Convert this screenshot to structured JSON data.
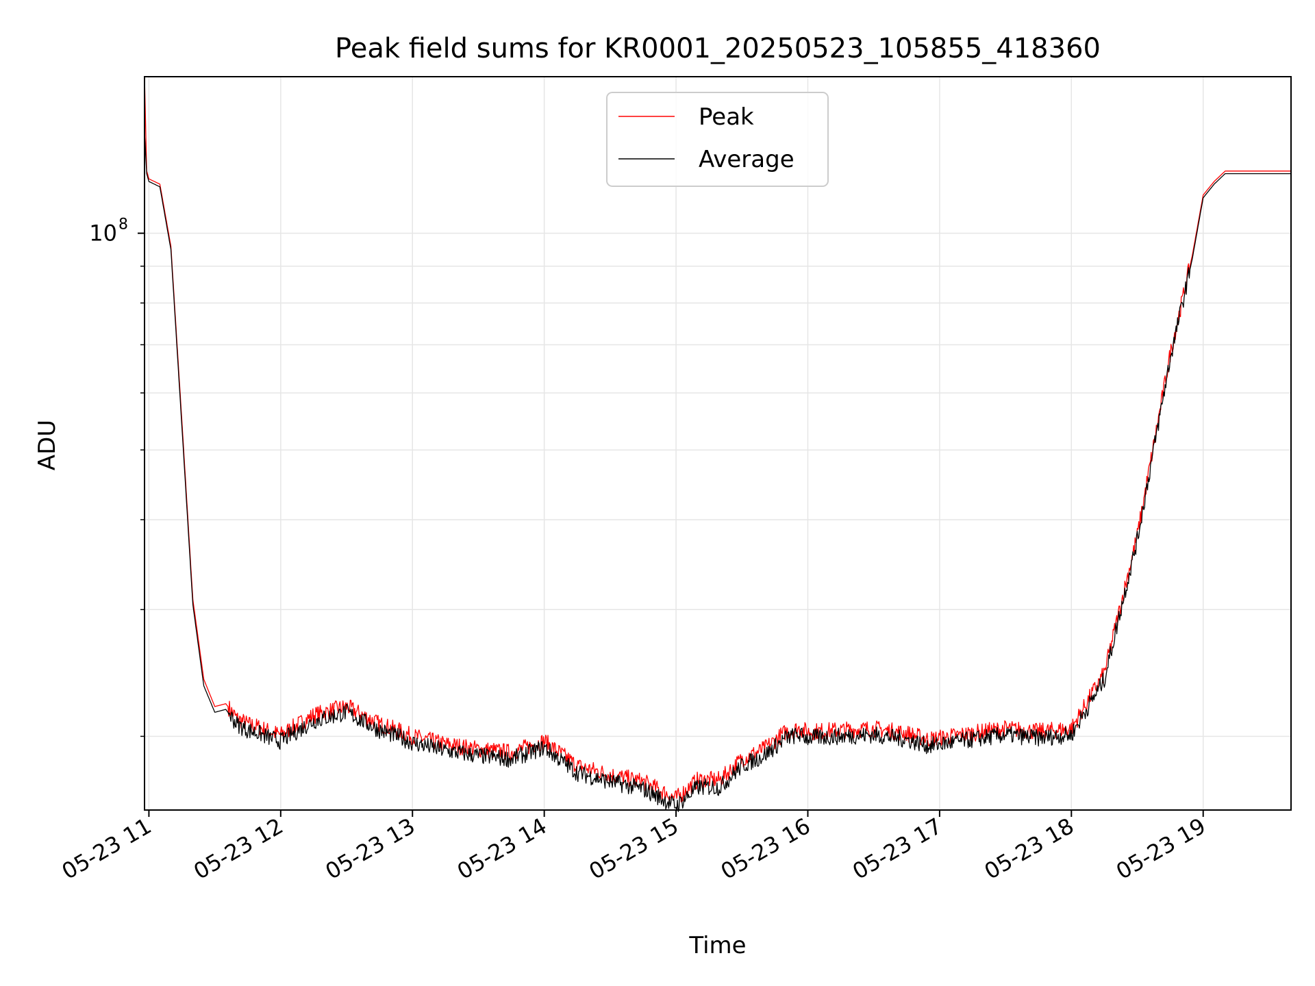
{
  "chart_data": {
    "type": "line",
    "title": "Peak field sums for KR0001_20250523_105855_418360",
    "xlabel": "Time",
    "ylabel": "ADU",
    "yscale": "log",
    "grid": true,
    "legend_position": "top-center",
    "x_ticks": [
      "05-23 11",
      "05-23 12",
      "05-23 13",
      "05-23 14",
      "05-23 15",
      "05-23 16",
      "05-23 17",
      "05-23 18",
      "05-23 19"
    ],
    "y_tick_major": {
      "value": 100000000,
      "label_base": "10",
      "label_exp": "8"
    },
    "y_minor_ticks": [
      20000000,
      30000000,
      40000000,
      50000000,
      60000000,
      70000000,
      80000000,
      90000000
    ],
    "xlim": [
      "2025-05-23T10:58",
      "2025-05-23T19:40"
    ],
    "ylim": [
      15800000,
      165000000
    ],
    "series": [
      {
        "name": "Peak",
        "color": "#ff0000",
        "x": [
          "2025-05-23T10:58",
          "2025-05-23T10:59",
          "2025-05-23T11:00",
          "2025-05-23T11:05",
          "2025-05-23T11:10",
          "2025-05-23T11:15",
          "2025-05-23T11:20",
          "2025-05-23T11:25",
          "2025-05-23T11:30",
          "2025-05-23T11:35",
          "2025-05-23T11:40",
          "2025-05-23T11:45",
          "2025-05-23T11:50",
          "2025-05-23T11:55",
          "2025-05-23T12:00",
          "2025-05-23T12:15",
          "2025-05-23T12:30",
          "2025-05-23T12:45",
          "2025-05-23T12:55",
          "2025-05-23T13:00",
          "2025-05-23T13:15",
          "2025-05-23T13:30",
          "2025-05-23T13:45",
          "2025-05-23T14:00",
          "2025-05-23T14:15",
          "2025-05-23T14:30",
          "2025-05-23T14:45",
          "2025-05-23T15:00",
          "2025-05-23T15:10",
          "2025-05-23T15:20",
          "2025-05-23T15:30",
          "2025-05-23T15:40",
          "2025-05-23T15:50",
          "2025-05-23T15:56",
          "2025-05-23T16:00",
          "2025-05-23T16:15",
          "2025-05-23T16:30",
          "2025-05-23T16:45",
          "2025-05-23T16:55",
          "2025-05-23T17:00",
          "2025-05-23T17:15",
          "2025-05-23T17:30",
          "2025-05-23T17:45",
          "2025-05-23T18:00",
          "2025-05-23T18:15",
          "2025-05-23T18:30",
          "2025-05-23T18:45",
          "2025-05-23T18:55",
          "2025-05-23T19:00",
          "2025-05-23T19:05",
          "2025-05-23T19:10",
          "2025-05-23T19:15",
          "2025-05-23T19:20",
          "2025-05-23T19:25",
          "2025-05-23T19:30",
          "2025-05-23T19:35",
          "2025-05-23T19:40"
        ],
        "y": [
          165000000,
          122000000,
          119000000,
          117000000,
          96000000,
          55000000,
          31000000,
          24000000,
          22000000,
          22200000,
          21200000,
          20800000,
          20600000,
          20300000,
          20100000,
          21400000,
          22000000,
          20800000,
          20300000,
          20000000,
          19500000,
          19200000,
          19000000,
          19700000,
          18200000,
          17700000,
          17300000,
          16400000,
          17400000,
          17400000,
          18600000,
          19200000,
          20300000,
          20500000,
          20300000,
          20400000,
          20500000,
          20200000,
          19800000,
          19900000,
          20200000,
          20500000,
          20300000,
          20500000,
          24500000,
          38000000,
          68000000,
          93000000,
          113000000,
          118000000,
          122000000,
          122000000,
          122000000,
          122000000,
          122000000,
          122000000,
          122000000
        ]
      },
      {
        "name": "Average",
        "color": "#000000",
        "x": [
          "2025-05-23T10:58",
          "2025-05-23T10:59",
          "2025-05-23T11:00",
          "2025-05-23T11:05",
          "2025-05-23T11:10",
          "2025-05-23T11:15",
          "2025-05-23T11:20",
          "2025-05-23T11:25",
          "2025-05-23T11:30",
          "2025-05-23T11:35",
          "2025-05-23T11:40",
          "2025-05-23T11:45",
          "2025-05-23T11:50",
          "2025-05-23T11:55",
          "2025-05-23T12:00",
          "2025-05-23T12:15",
          "2025-05-23T12:30",
          "2025-05-23T12:45",
          "2025-05-23T12:55",
          "2025-05-23T13:00",
          "2025-05-23T13:15",
          "2025-05-23T13:30",
          "2025-05-23T13:45",
          "2025-05-23T14:00",
          "2025-05-23T14:15",
          "2025-05-23T14:30",
          "2025-05-23T14:45",
          "2025-05-23T15:00",
          "2025-05-23T15:10",
          "2025-05-23T15:20",
          "2025-05-23T15:30",
          "2025-05-23T15:40",
          "2025-05-23T15:50",
          "2025-05-23T15:56",
          "2025-05-23T16:00",
          "2025-05-23T16:15",
          "2025-05-23T16:30",
          "2025-05-23T16:45",
          "2025-05-23T16:55",
          "2025-05-23T17:00",
          "2025-05-23T17:15",
          "2025-05-23T17:30",
          "2025-05-23T17:45",
          "2025-05-23T18:00",
          "2025-05-23T18:15",
          "2025-05-23T18:30",
          "2025-05-23T18:45",
          "2025-05-23T18:55",
          "2025-05-23T19:00",
          "2025-05-23T19:05",
          "2025-05-23T19:10",
          "2025-05-23T19:15",
          "2025-05-23T19:20",
          "2025-05-23T19:25",
          "2025-05-23T19:30",
          "2025-05-23T19:35",
          "2025-05-23T19:40"
        ],
        "y": [
          138000000,
          121000000,
          118000000,
          116000000,
          95000000,
          54000000,
          30500000,
          23500000,
          21600000,
          21800000,
          20800000,
          20400000,
          20200000,
          19900000,
          19700000,
          21000000,
          21600000,
          20400000,
          19900000,
          19600000,
          19100000,
          18800000,
          18600000,
          19300000,
          17800000,
          17300000,
          16900000,
          16000000,
          17000000,
          17000000,
          18200000,
          18800000,
          19900000,
          20100000,
          19900000,
          20000000,
          20100000,
          19800000,
          19400000,
          19500000,
          19800000,
          20100000,
          19900000,
          20100000,
          24000000,
          37500000,
          67000000,
          92000000,
          112000000,
          117000000,
          121000000,
          121000000,
          121000000,
          121000000,
          121000000,
          121000000,
          121000000
        ]
      }
    ]
  }
}
